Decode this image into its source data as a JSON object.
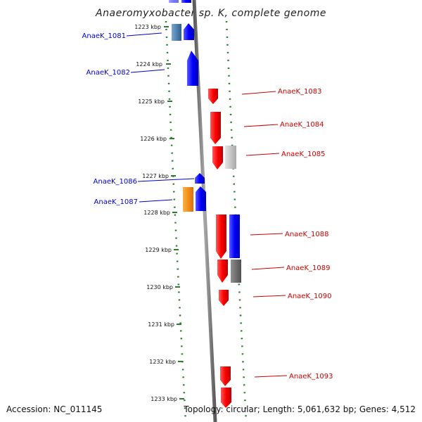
{
  "title": "Anaeromyxobacter sp. K, complete genome",
  "footer": {
    "accession": "Accession: NC_011145",
    "info": "Topology: circular; Length: 5,061,632 bp; Genes: 4,512"
  },
  "ticks": [
    "1223 kbp",
    "1224 kbp",
    "1225 kbp",
    "1226 kbp",
    "1227 kbp",
    "1228 kbp",
    "1229 kbp",
    "1230 kbp",
    "1231 kbp",
    "1232 kbp",
    "1233 kbp"
  ],
  "colors": {
    "forward_strand": "#ff0000",
    "reverse_strand": "#0000ff",
    "forward_label": "#cc0000",
    "reverse_label": "#0000cc",
    "backbone": "#808080",
    "tick_dots": "#2a7d2a",
    "orange_gene": "#ff8c00",
    "grey_gene": "#c8c8c8",
    "dark_grey_gene": "#707070",
    "steel_gene": "#4682b4"
  },
  "gene_labels": {
    "k1081": "AnaeK_1081",
    "k1082": "AnaeK_1082",
    "k1083": "AnaeK_1083",
    "k1084": "AnaeK_1084",
    "k1085": "AnaeK_1085",
    "k1086": "AnaeK_1086",
    "k1087": "AnaeK_1087",
    "k1088": "AnaeK_1088",
    "k1089": "AnaeK_1089",
    "k1090": "AnaeK_1090",
    "k1093": "AnaeK_1093"
  }
}
